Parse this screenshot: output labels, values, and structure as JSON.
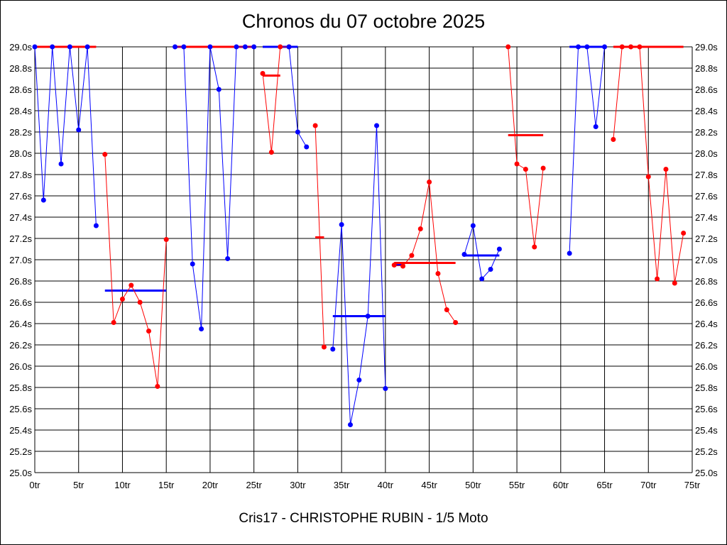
{
  "chart_data": {
    "type": "line",
    "title": "Chronos du 07 octobre 2025",
    "subtitle": "Cris17 - CHRISTOPHE RUBIN - 1/5 Moto",
    "x_ticks": [
      "0tr",
      "5tr",
      "10tr",
      "15tr",
      "20tr",
      "25tr",
      "30tr",
      "35tr",
      "40tr",
      "45tr",
      "50tr",
      "55tr",
      "60tr",
      "65tr",
      "70tr",
      "75tr"
    ],
    "y_ticks": [
      "25.0s",
      "25.2s",
      "25.4s",
      "25.6s",
      "25.8s",
      "26.0s",
      "26.2s",
      "26.4s",
      "26.6s",
      "26.8s",
      "27.0s",
      "27.2s",
      "27.4s",
      "27.6s",
      "27.8s",
      "28.0s",
      "28.2s",
      "28.4s",
      "28.6s",
      "28.8s",
      "29.0s"
    ],
    "xlim": [
      0,
      75
    ],
    "ylim": [
      25.0,
      29.0
    ],
    "grid": true,
    "colors": {
      "blue": "#0000ff",
      "red": "#ff0000"
    },
    "segments": [
      {
        "color": "blue",
        "points": [
          [
            0,
            29.0
          ],
          [
            1,
            27.56
          ],
          [
            2,
            29.0
          ],
          [
            3,
            27.9
          ],
          [
            4,
            29.0
          ],
          [
            5,
            28.22
          ],
          [
            6,
            29.0
          ],
          [
            7,
            27.32
          ]
        ],
        "avg": [
          0,
          7,
          29.0
        ]
      },
      {
        "color": "red",
        "points": [
          [
            8,
            27.99
          ],
          [
            9,
            26.41
          ],
          [
            10,
            26.63
          ],
          [
            11,
            26.76
          ],
          [
            12,
            26.6
          ],
          [
            13,
            26.33
          ],
          [
            14,
            25.81
          ],
          [
            15,
            27.19
          ]
        ],
        "avg": [
          8,
          15,
          26.71
        ]
      },
      {
        "color": "blue",
        "points": [
          [
            16,
            29.0
          ],
          [
            17,
            29.0
          ],
          [
            18,
            26.96
          ],
          [
            19,
            26.35
          ],
          [
            20,
            29.0
          ],
          [
            21,
            28.6
          ],
          [
            22,
            27.01
          ],
          [
            23,
            29.0
          ],
          [
            24,
            29.0
          ],
          [
            25,
            29.0
          ]
        ],
        "avg": [
          16,
          25,
          29.0
        ]
      },
      {
        "color": "red",
        "points": [
          [
            26,
            28.75
          ],
          [
            27,
            28.01
          ],
          [
            28,
            29.0
          ],
          [
            29,
            29.0
          ]
        ],
        "avg": [
          26,
          30,
          29.0
        ]
      },
      {
        "color": "blue",
        "points": [
          [
            29,
            29.0
          ],
          [
            30,
            28.2
          ],
          [
            31,
            28.06
          ]
        ],
        "avg": [
          26,
          28,
          28.73
        ]
      },
      {
        "color": "red",
        "points": [
          [
            32,
            28.26
          ],
          [
            33,
            26.18
          ]
        ],
        "avg": [
          34,
          40,
          26.47
        ]
      },
      {
        "color": "blue",
        "points": [
          [
            34,
            26.16
          ],
          [
            35,
            27.33
          ],
          [
            36,
            25.45
          ],
          [
            37,
            25.87
          ],
          [
            38,
            26.47
          ],
          [
            39,
            28.26
          ],
          [
            40,
            25.79
          ]
        ],
        "avg": [
          32,
          33,
          27.21
        ]
      },
      {
        "color": "red",
        "points": [
          [
            41,
            26.95
          ],
          [
            42,
            26.94
          ],
          [
            43,
            27.04
          ],
          [
            44,
            27.29
          ],
          [
            45,
            27.73
          ],
          [
            46,
            26.87
          ],
          [
            47,
            26.53
          ],
          [
            48,
            26.41
          ]
        ],
        "avg": [
          41,
          42,
          26.95
        ]
      },
      {
        "color": "blue",
        "points": [
          [
            49,
            27.05
          ],
          [
            50,
            27.32
          ],
          [
            51,
            26.82
          ],
          [
            52,
            26.91
          ],
          [
            53,
            27.1
          ]
        ],
        "avg": [
          41,
          48,
          26.97
        ]
      },
      {
        "color": "red",
        "points": [
          [
            54,
            29.0
          ],
          [
            55,
            27.9
          ],
          [
            56,
            27.85
          ],
          [
            57,
            27.12
          ],
          [
            58,
            27.86
          ]
        ],
        "avg": [
          49,
          53,
          27.04
        ]
      },
      {
        "color": "blue",
        "points": [
          [
            61,
            27.06
          ],
          [
            62,
            29.0
          ],
          [
            63,
            29.0
          ],
          [
            64,
            28.25
          ],
          [
            65,
            29.0
          ]
        ],
        "avg": [
          54,
          58,
          28.17
        ]
      },
      {
        "color": "red",
        "points": [
          [
            66,
            28.13
          ],
          [
            67,
            29.0
          ],
          [
            68,
            29.0
          ],
          [
            69,
            29.0
          ],
          [
            70,
            27.78
          ],
          [
            71,
            26.82
          ],
          [
            72,
            27.85
          ],
          [
            73,
            26.78
          ],
          [
            74,
            27.25
          ]
        ],
        "avg": [
          61,
          65,
          29.0
        ]
      },
      {
        "color": "blue",
        "points": [],
        "avg": [
          66,
          74,
          29.0
        ]
      }
    ]
  }
}
